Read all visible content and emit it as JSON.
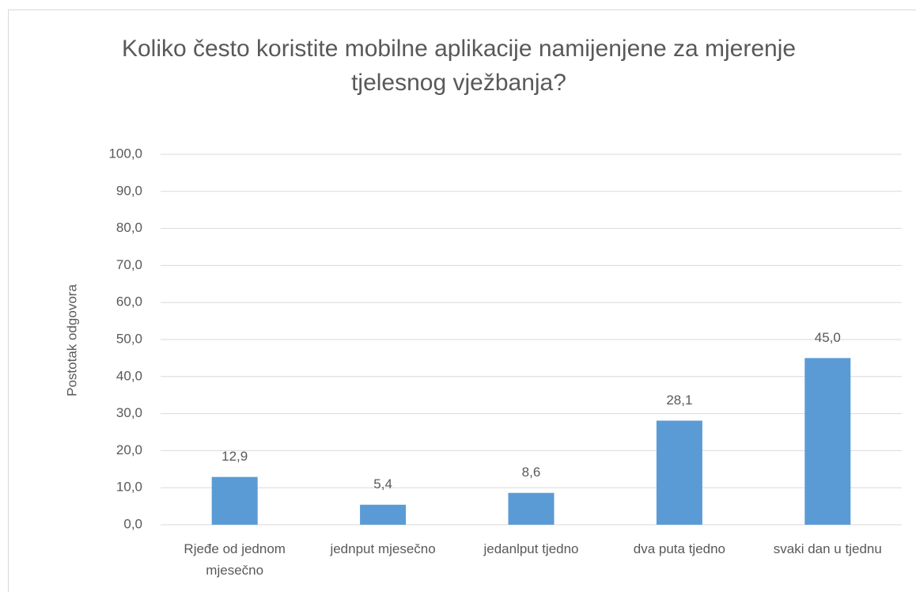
{
  "chart_data": {
    "type": "bar",
    "title": "Koliko često koristite mobilne aplikacije namijenjene za mjerenje tjelesnog vježbanja?",
    "y_label": "Postotak odgovora",
    "categories": [
      "Rjeđe od jednom mjesečno",
      "jednput mjesečno",
      "jedanlput tjedno",
      "dva puta tjedno",
      "svaki dan u tjednu"
    ],
    "values": [
      12.9,
      5.4,
      8.6,
      28.1,
      45.0
    ],
    "value_labels": [
      "12,9",
      "5,4",
      "8,6",
      "28,1",
      "45,0"
    ],
    "color": "#5b9bd5",
    "ylim": [
      0,
      100
    ],
    "yticks": [
      {
        "value": 0,
        "label": "0,0"
      },
      {
        "value": 10,
        "label": "10,0"
      },
      {
        "value": 20,
        "label": "20,0"
      },
      {
        "value": 30,
        "label": "30,0"
      },
      {
        "value": 40,
        "label": "40,0"
      },
      {
        "value": 50,
        "label": "50,0"
      },
      {
        "value": 60,
        "label": "60,0"
      },
      {
        "value": 70,
        "label": "70,0"
      },
      {
        "value": 80,
        "label": "80,0"
      },
      {
        "value": 90,
        "label": "90,0"
      },
      {
        "value": 100,
        "label": "100,0"
      }
    ],
    "grid": true
  }
}
